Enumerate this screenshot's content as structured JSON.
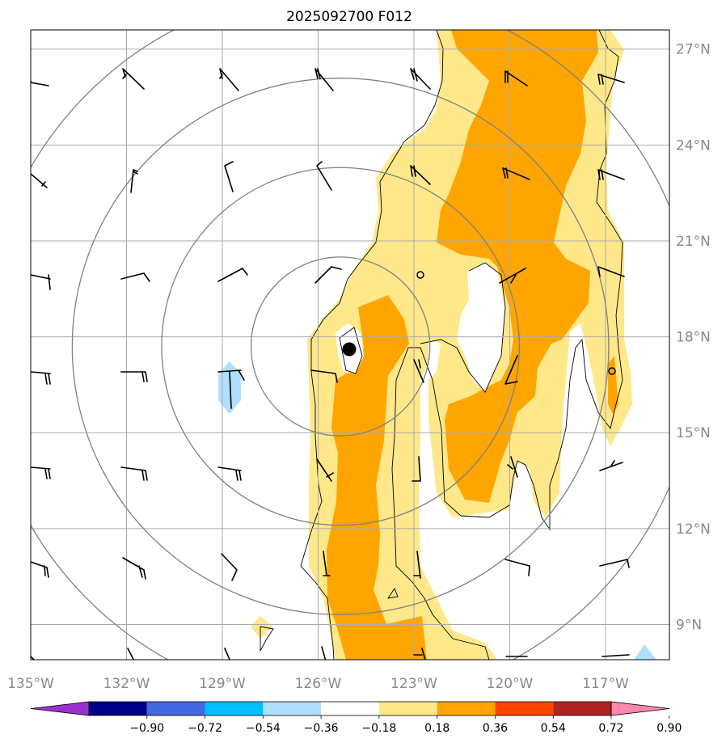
{
  "title": "2025092700 F012",
  "map": {
    "lon_labels": [
      "135°W",
      "132°W",
      "129°W",
      "126°W",
      "123°W",
      "120°W",
      "117°W"
    ],
    "lat_labels": [
      "27°N",
      "24°N",
      "21°N",
      "18°N",
      "15°N",
      "12°N",
      "9°N"
    ],
    "lon_values": [
      -135,
      -132,
      -129,
      -126,
      -123,
      -120,
      -117
    ],
    "lat_values": [
      27,
      24,
      21,
      18,
      15,
      12,
      9
    ],
    "extent": {
      "lon": [
        -135,
        -115
      ],
      "lat": [
        7.9,
        27.6
      ]
    },
    "storm_center": {
      "lon": -125.3,
      "lat": 17.7
    },
    "minor_markers": [
      {
        "lon": -123,
        "lat": 20
      },
      {
        "lon": -117,
        "lat": 17
      }
    ],
    "range_rings_deg": [
      2.8,
      5.6,
      8.4,
      11.2
    ]
  },
  "colorbar": {
    "tick_labels": [
      "−0.90",
      "−0.72",
      "−0.54",
      "−0.36",
      "−0.18",
      "0.18",
      "0.36",
      "0.54",
      "0.72",
      "0.90"
    ],
    "colors": [
      "#9932cc",
      "#00008b",
      "#4169e1",
      "#00bfff",
      "#b0e0ff",
      "#ffffff",
      "#ffe88a",
      "#ffa500",
      "#ff4500",
      "#b22222",
      "#ff88aa"
    ]
  },
  "colors": {
    "light_yellow": "#ffe88a",
    "orange": "#ffa500",
    "light_blue": "#b0e0ff",
    "grid": "#aaaaaa",
    "ring": "#808080"
  }
}
